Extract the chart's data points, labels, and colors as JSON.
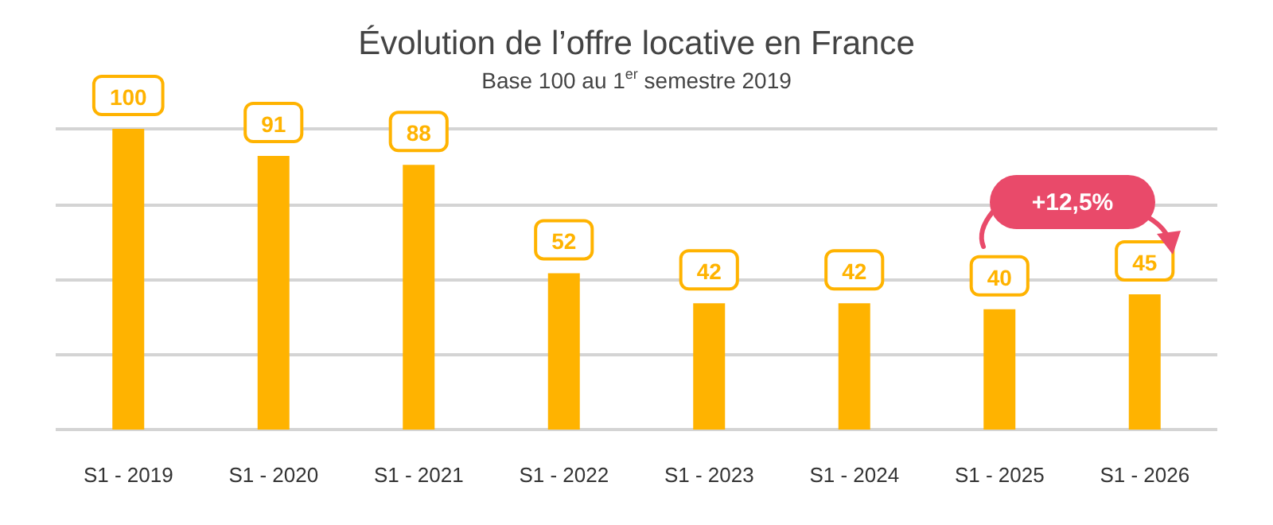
{
  "chart_data": {
    "type": "bar",
    "title": "Évolution de l’offre locative en France",
    "subtitle": "Base 100 au 1$^{er}$ semestre 2019",
    "categories": [
      "S1 - 2019",
      "S1 - 2020",
      "S1 - 2021",
      "S1 - 2022",
      "S1 - 2023",
      "S1 - 2024",
      "S1 - 2025",
      "S1 - 2026"
    ],
    "values": [
      100,
      91,
      88,
      52,
      42,
      42,
      40,
      45
    ],
    "color": "#ffb300",
    "ylim": [
      0,
      100
    ],
    "yticks": [
      {
        "value": 0,
        "label": null
      },
      {
        "value": 25,
        "label": null
      },
      {
        "value": 50,
        "label": null
      },
      {
        "value": 75,
        "label": null
      },
      {
        "value": 100,
        "label": null
      }
    ],
    "tick_labels": "x",
    "grid": "y",
    "data_labels": true,
    "annotations": [
      "+12,5%"
    ]
  }
}
